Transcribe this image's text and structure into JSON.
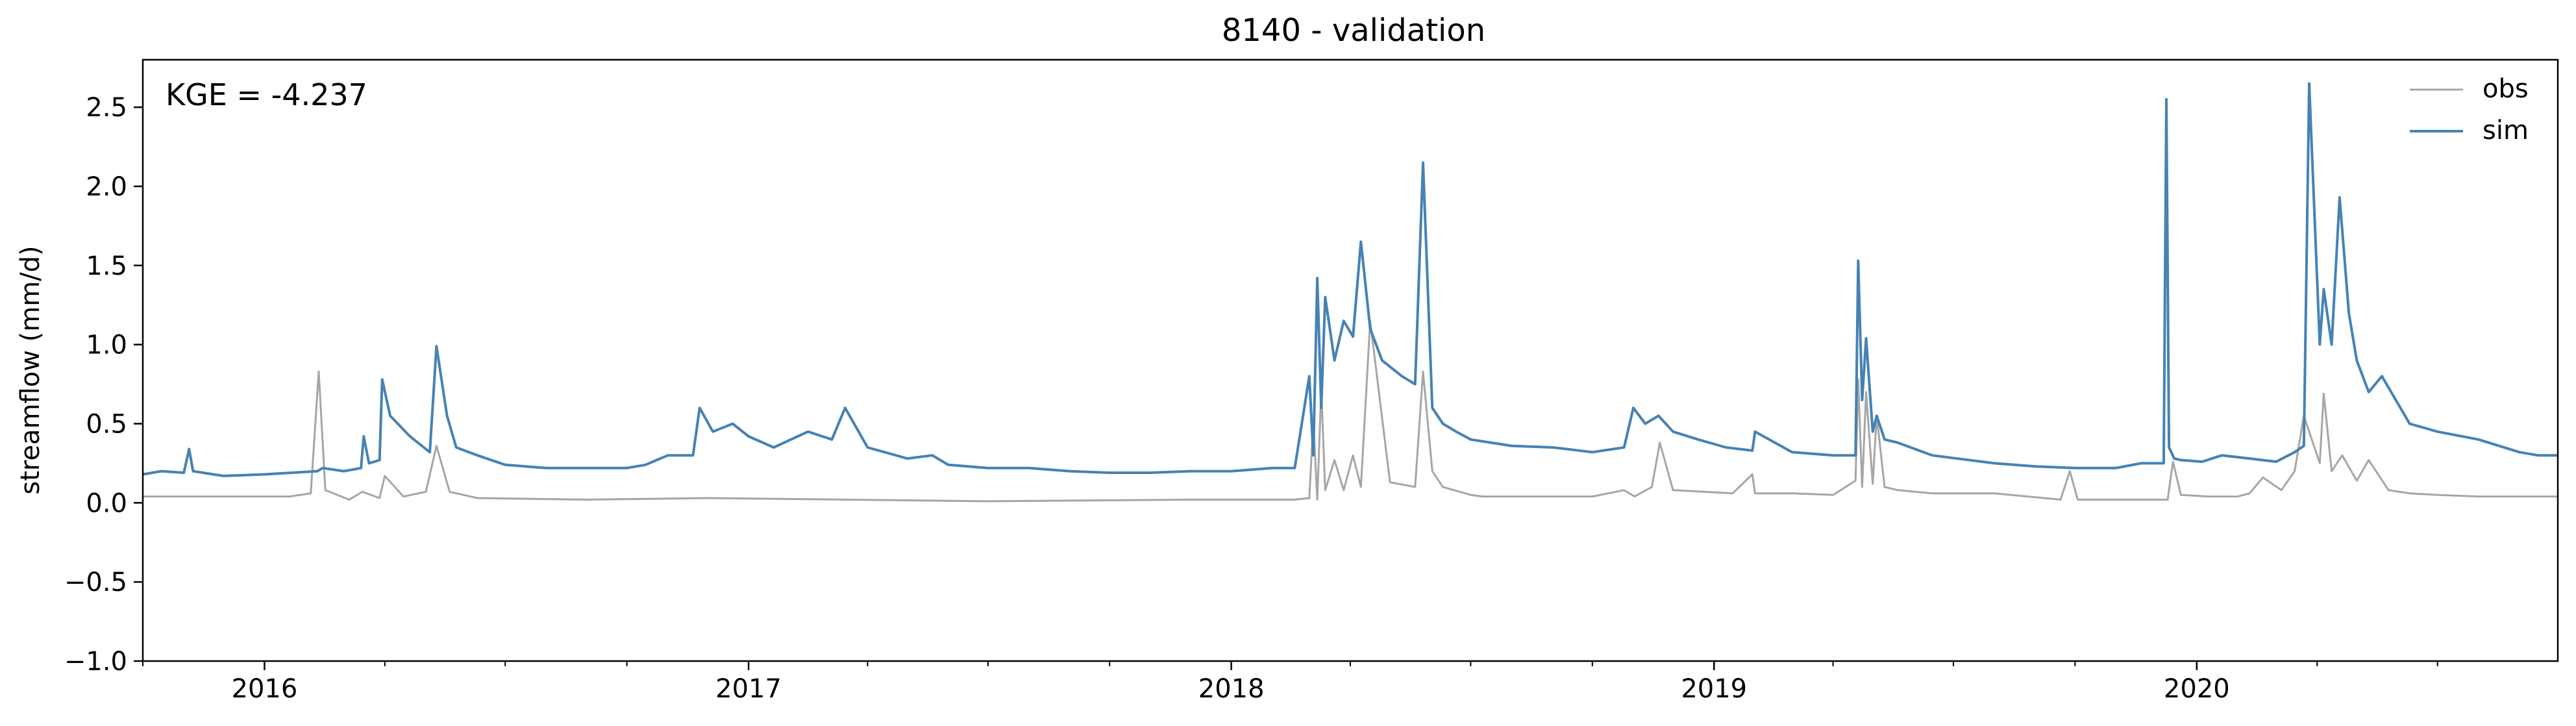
{
  "chart_data": {
    "type": "line",
    "title": "8140 - validation",
    "xlabel": "",
    "ylabel": "streamflow (mm/d)",
    "annotation": "KGE = -4.237",
    "xlim": [
      "2015-10-01",
      "2020-09-30"
    ],
    "ylim": [
      -1.0,
      2.8
    ],
    "yticks": [
      -1.0,
      -0.5,
      0.0,
      0.5,
      1.0,
      1.5,
      2.0,
      2.5
    ],
    "ytick_labels": [
      "−1.0",
      "−0.5",
      "0.0",
      "0.5",
      "1.0",
      "1.5",
      "2.0",
      "2.5"
    ],
    "xticks": [
      "2016-01-01",
      "2017-01-01",
      "2018-01-01",
      "2019-01-01",
      "2020-01-01"
    ],
    "xtick_labels": [
      "2016",
      "2017",
      "2018",
      "2019",
      "2020"
    ],
    "legend_position": "top-right",
    "grid": false,
    "series": [
      {
        "name": "obs",
        "color": "#a6a6a6",
        "x": [
          "2015-10-01",
          "2016-01-20",
          "2016-02-05",
          "2016-02-11",
          "2016-02-16",
          "2016-02-25",
          "2016-03-05",
          "2016-03-15",
          "2016-03-28",
          "2016-04-01",
          "2016-04-15",
          "2016-05-02",
          "2016-05-10",
          "2016-05-20",
          "2016-06-10",
          "2016-09-01",
          "2016-12-01",
          "2017-03-15",
          "2017-07-01",
          "2017-12-01",
          "2018-02-18",
          "2018-03-01",
          "2018-03-04",
          "2018-03-07",
          "2018-03-10",
          "2018-03-13",
          "2018-03-20",
          "2018-03-27",
          "2018-04-03",
          "2018-04-09",
          "2018-04-16",
          "2018-05-01",
          "2018-05-20",
          "2018-05-26",
          "2018-06-02",
          "2018-06-10",
          "2018-07-01",
          "2018-07-10",
          "2018-08-01",
          "2018-09-01",
          "2018-10-01",
          "2018-10-25",
          "2018-11-02",
          "2018-11-15",
          "2018-11-21",
          "2018-12-01",
          "2019-01-15",
          "2019-01-30",
          "2019-02-01",
          "2019-03-01",
          "2019-04-01",
          "2019-04-18",
          "2019-04-20",
          "2019-04-23",
          "2019-04-26",
          "2019-05-01",
          "2019-05-04",
          "2019-05-10",
          "2019-05-20",
          "2019-06-15",
          "2019-08-01",
          "2019-09-20",
          "2019-09-27",
          "2019-10-03",
          "2019-11-01",
          "2019-12-07",
          "2019-12-10",
          "2019-12-14",
          "2019-12-20",
          "2020-01-10",
          "2020-02-01",
          "2020-02-10",
          "2020-02-20",
          "2020-03-05",
          "2020-03-15",
          "2020-03-22",
          "2020-04-03",
          "2020-04-06",
          "2020-04-12",
          "2020-04-20",
          "2020-05-01",
          "2020-05-10",
          "2020-05-25",
          "2020-06-10",
          "2020-07-01",
          "2020-08-01",
          "2020-09-30"
        ],
        "y": [
          0.04,
          0.04,
          0.06,
          0.83,
          0.08,
          0.05,
          0.02,
          0.07,
          0.03,
          0.17,
          0.04,
          0.07,
          0.36,
          0.07,
          0.03,
          0.02,
          0.03,
          0.02,
          0.01,
          0.02,
          0.02,
          0.03,
          0.52,
          0.02,
          0.72,
          0.08,
          0.27,
          0.08,
          0.3,
          0.1,
          1.15,
          0.13,
          0.1,
          0.83,
          0.2,
          0.1,
          0.05,
          0.04,
          0.04,
          0.04,
          0.04,
          0.08,
          0.04,
          0.1,
          0.38,
          0.08,
          0.06,
          0.18,
          0.06,
          0.06,
          0.05,
          0.14,
          0.78,
          0.1,
          0.7,
          0.12,
          0.55,
          0.1,
          0.08,
          0.06,
          0.06,
          0.02,
          0.2,
          0.02,
          0.02,
          0.02,
          0.02,
          0.26,
          0.05,
          0.04,
          0.04,
          0.06,
          0.16,
          0.08,
          0.2,
          0.55,
          0.25,
          0.69,
          0.2,
          0.3,
          0.14,
          0.27,
          0.08,
          0.06,
          0.05,
          0.04,
          0.04
        ]
      },
      {
        "name": "sim",
        "color": "#4682b4",
        "x": [
          "2015-10-01",
          "2015-10-15",
          "2015-11-01",
          "2015-11-05",
          "2015-11-08",
          "2015-12-01",
          "2016-01-01",
          "2016-02-10",
          "2016-02-14",
          "2016-03-01",
          "2016-03-14",
          "2016-03-16",
          "2016-03-20",
          "2016-03-28",
          "2016-03-30",
          "2016-04-05",
          "2016-04-20",
          "2016-05-05",
          "2016-05-10",
          "2016-05-18",
          "2016-05-25",
          "2016-06-10",
          "2016-07-01",
          "2016-08-01",
          "2016-09-01",
          "2016-10-01",
          "2016-10-15",
          "2016-11-01",
          "2016-11-20",
          "2016-11-25",
          "2016-12-05",
          "2016-12-20",
          "2017-01-01",
          "2017-01-20",
          "2017-02-15",
          "2017-03-05",
          "2017-03-15",
          "2017-04-01",
          "2017-05-01",
          "2017-05-20",
          "2017-06-01",
          "2017-07-01",
          "2017-08-01",
          "2017-09-01",
          "2017-10-01",
          "2017-11-01",
          "2017-12-01",
          "2018-01-01",
          "2018-02-01",
          "2018-02-18",
          "2018-03-01",
          "2018-03-04",
          "2018-03-07",
          "2018-03-10",
          "2018-03-13",
          "2018-03-20",
          "2018-03-27",
          "2018-04-03",
          "2018-04-09",
          "2018-04-16",
          "2018-04-25",
          "2018-05-10",
          "2018-05-20",
          "2018-05-26",
          "2018-06-02",
          "2018-06-10",
          "2018-06-20",
          "2018-07-01",
          "2018-08-01",
          "2018-09-01",
          "2018-10-01",
          "2018-10-25",
          "2018-11-01",
          "2018-11-10",
          "2018-11-20",
          "2018-12-01",
          "2018-12-20",
          "2019-01-10",
          "2019-01-30",
          "2019-02-01",
          "2019-03-01",
          "2019-04-01",
          "2019-04-18",
          "2019-04-20",
          "2019-04-23",
          "2019-04-26",
          "2019-05-01",
          "2019-05-04",
          "2019-05-10",
          "2019-05-20",
          "2019-06-15",
          "2019-08-01",
          "2019-09-01",
          "2019-10-01",
          "2019-11-01",
          "2019-11-20",
          "2019-12-07",
          "2019-12-09",
          "2019-12-11",
          "2019-12-15",
          "2019-12-20",
          "2020-01-05",
          "2020-01-20",
          "2020-02-10",
          "2020-03-01",
          "2020-03-15",
          "2020-03-22",
          "2020-03-26",
          "2020-04-03",
          "2020-04-06",
          "2020-04-12",
          "2020-04-18",
          "2020-04-25",
          "2020-05-01",
          "2020-05-10",
          "2020-05-20",
          "2020-06-10",
          "2020-07-01",
          "2020-08-01",
          "2020-09-01",
          "2020-09-15",
          "2020-09-30"
        ],
        "y": [
          0.18,
          0.2,
          0.19,
          0.34,
          0.2,
          0.17,
          0.18,
          0.2,
          0.22,
          0.2,
          0.22,
          0.42,
          0.25,
          0.27,
          0.78,
          0.55,
          0.42,
          0.32,
          0.99,
          0.55,
          0.35,
          0.3,
          0.24,
          0.22,
          0.22,
          0.22,
          0.24,
          0.3,
          0.3,
          0.6,
          0.45,
          0.5,
          0.42,
          0.35,
          0.45,
          0.4,
          0.6,
          0.35,
          0.28,
          0.3,
          0.24,
          0.22,
          0.22,
          0.2,
          0.19,
          0.19,
          0.2,
          0.2,
          0.22,
          0.22,
          0.8,
          0.3,
          1.42,
          0.6,
          1.3,
          0.9,
          1.15,
          1.05,
          1.65,
          1.1,
          0.9,
          0.8,
          0.75,
          2.15,
          0.6,
          0.5,
          0.45,
          0.4,
          0.36,
          0.35,
          0.32,
          0.35,
          0.6,
          0.5,
          0.55,
          0.45,
          0.4,
          0.35,
          0.33,
          0.45,
          0.32,
          0.3,
          0.3,
          1.53,
          0.65,
          1.04,
          0.45,
          0.55,
          0.4,
          0.38,
          0.3,
          0.25,
          0.23,
          0.22,
          0.22,
          0.25,
          0.25,
          2.55,
          0.35,
          0.28,
          0.27,
          0.26,
          0.3,
          0.28,
          0.26,
          0.32,
          0.36,
          2.65,
          1.0,
          1.35,
          1.0,
          1.93,
          1.2,
          0.9,
          0.7,
          0.8,
          0.5,
          0.45,
          0.4,
          0.32,
          0.3,
          0.3
        ]
      }
    ]
  }
}
